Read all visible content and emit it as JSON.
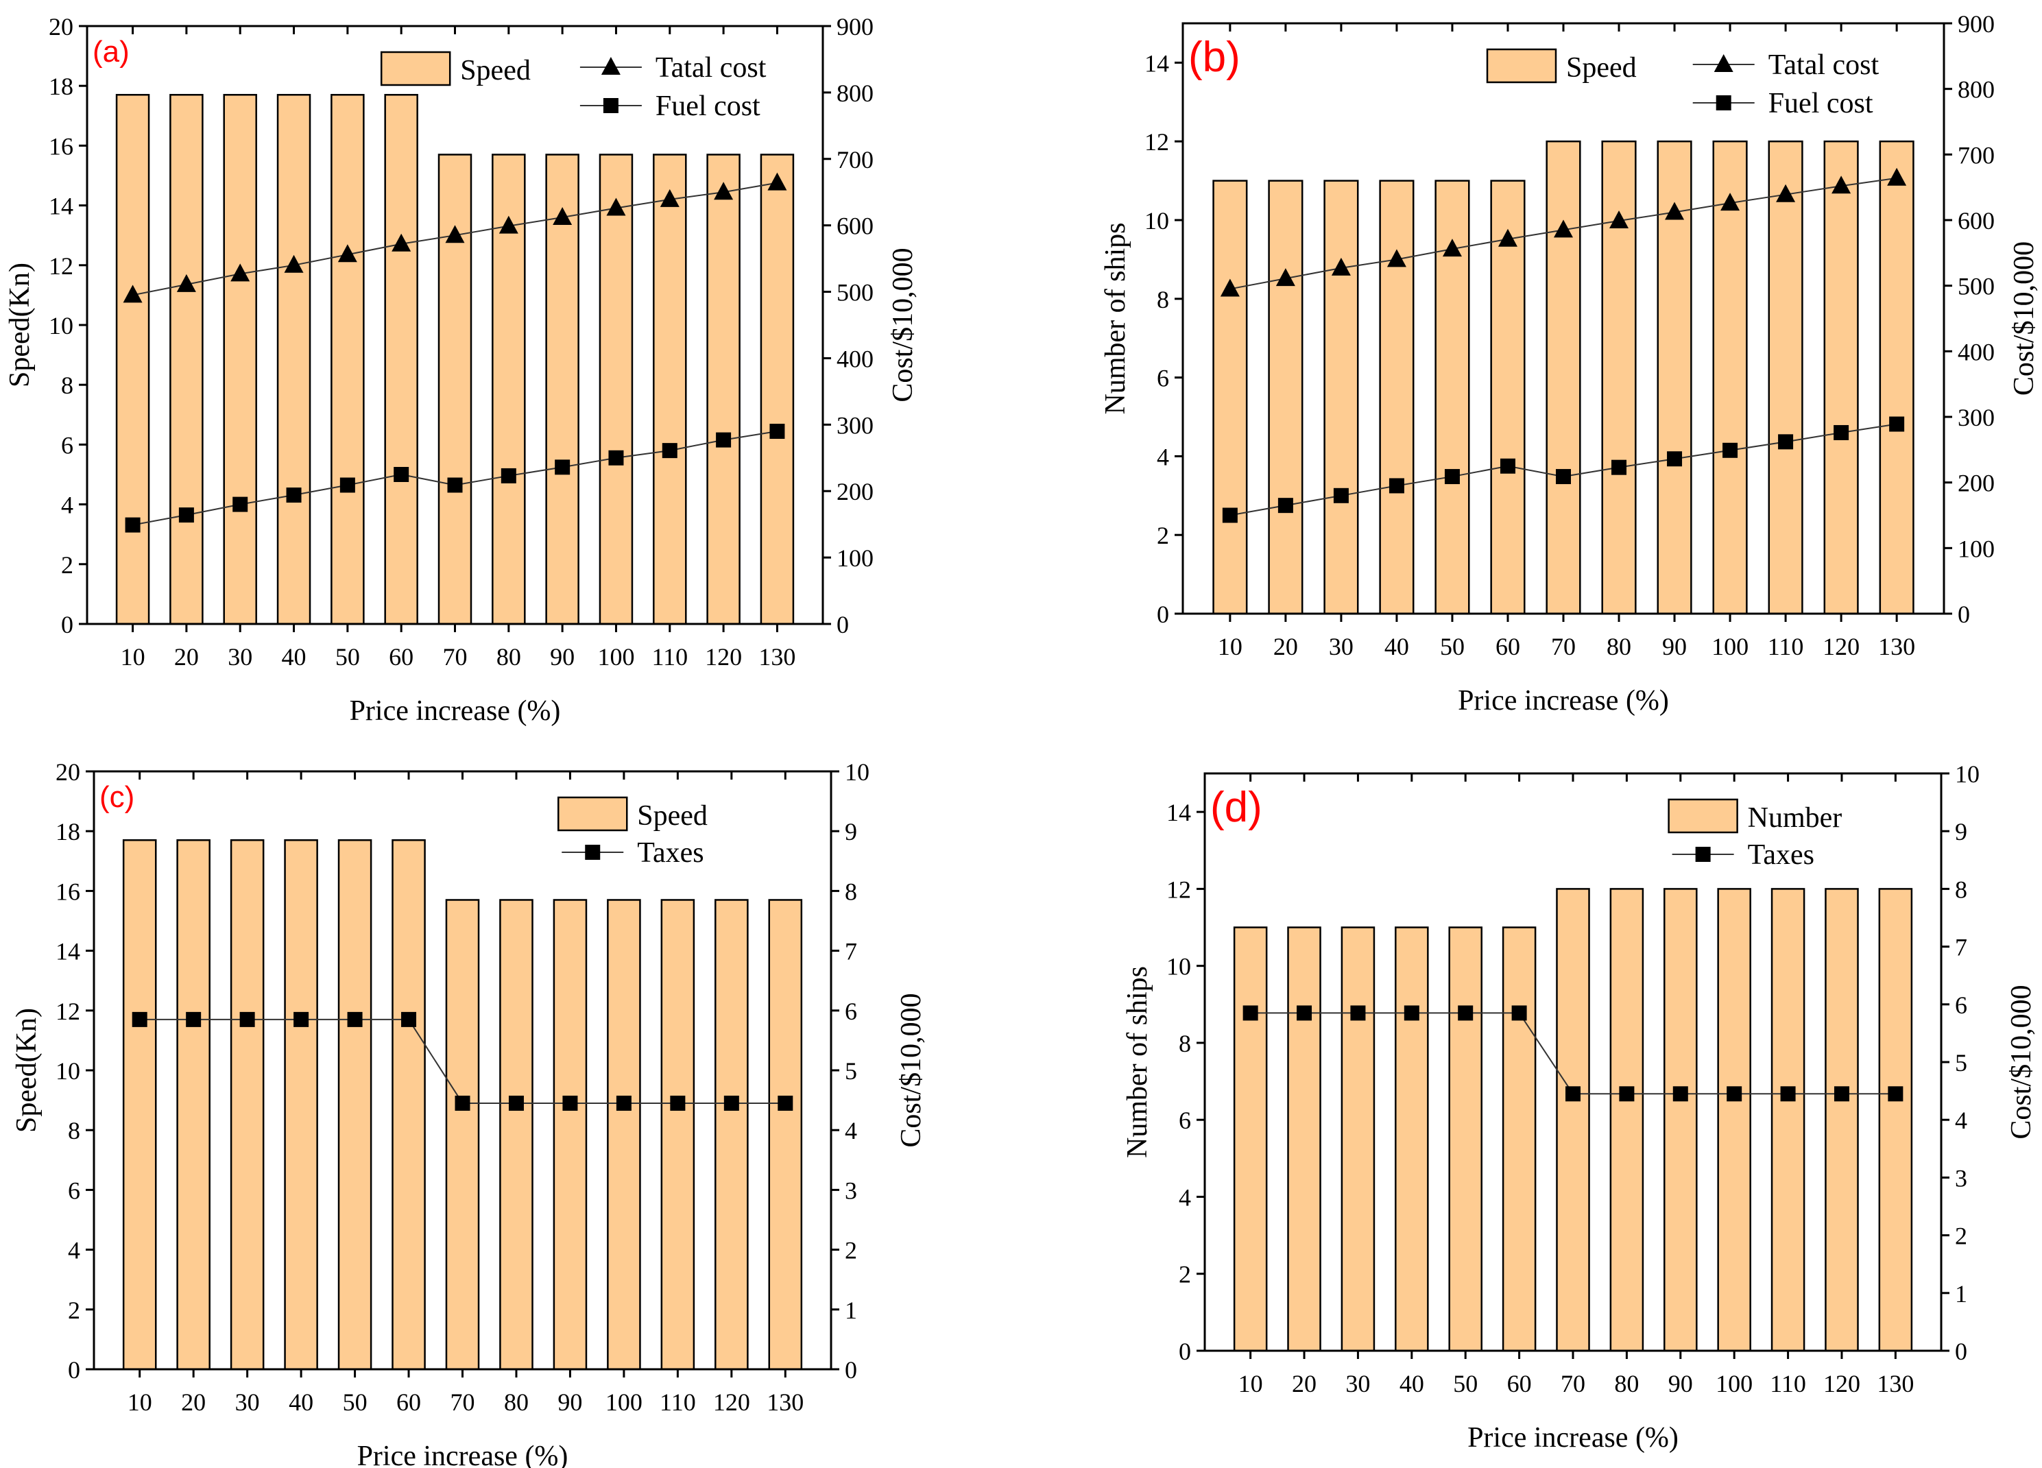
{
  "colors": {
    "bar": "#fecc92",
    "line": "#000000",
    "panel_label": "#ff0000"
  },
  "chart_data": [
    {
      "type": "bar+line",
      "panel_label": "(a)",
      "xlabel": "Price increase (%)",
      "ylabel": "Speed(Kn)",
      "y2label": "Cost/$10,000",
      "categories": [
        "10",
        "20",
        "30",
        "40",
        "50",
        "60",
        "70",
        "80",
        "90",
        "100",
        "110",
        "120",
        "130"
      ],
      "ylim": [
        0,
        20
      ],
      "yticks": [
        0,
        2,
        4,
        6,
        8,
        10,
        12,
        14,
        16,
        18,
        20
      ],
      "y2lim": [
        0,
        900
      ],
      "y2ticks": [
        0,
        100,
        200,
        300,
        400,
        500,
        600,
        700,
        800,
        900
      ],
      "legend_placement": "top-right",
      "bars": {
        "name": "Speed",
        "values": [
          17.7,
          17.7,
          17.7,
          17.7,
          17.7,
          17.7,
          15.7,
          15.7,
          15.7,
          15.7,
          15.7,
          15.7,
          15.7
        ]
      },
      "series": [
        {
          "name": "Tatal cost",
          "marker": "triangle",
          "values": [
            495,
            511,
            527,
            540,
            556,
            572,
            585,
            599,
            612,
            626,
            639,
            650,
            664
          ]
        },
        {
          "name": "Fuel cost",
          "marker": "square",
          "values": [
            149,
            164,
            180,
            194,
            209,
            225,
            209,
            223,
            236,
            250,
            261,
            277,
            290
          ]
        }
      ]
    },
    {
      "type": "bar+line",
      "panel_label": "(b)",
      "xlabel": "Price increase (%)",
      "ylabel": "Number of ships",
      "y2label": "Cost/$10,000",
      "categories": [
        "10",
        "20",
        "30",
        "40",
        "50",
        "60",
        "70",
        "80",
        "90",
        "100",
        "110",
        "120",
        "130"
      ],
      "ylim": [
        0,
        15
      ],
      "yticks": [
        0,
        2,
        4,
        6,
        8,
        10,
        12,
        14
      ],
      "y2lim": [
        0,
        900
      ],
      "y2ticks": [
        0,
        100,
        200,
        300,
        400,
        500,
        600,
        700,
        800,
        900
      ],
      "legend_placement": "top-right",
      "bars": {
        "name": "Speed",
        "values": [
          11,
          11,
          11,
          11,
          11,
          11,
          12,
          12,
          12,
          12,
          12,
          12,
          12
        ]
      },
      "series": [
        {
          "name": "Tatal cost",
          "marker": "triangle",
          "values": [
            495,
            511,
            527,
            540,
            556,
            571,
            585,
            599,
            612,
            626,
            639,
            652,
            664
          ]
        },
        {
          "name": "Fuel cost",
          "marker": "square",
          "values": [
            150,
            165,
            180,
            195,
            209,
            225,
            209,
            223,
            236,
            249,
            262,
            276,
            289
          ]
        }
      ]
    },
    {
      "type": "bar+line",
      "panel_label": "(c)",
      "xlabel": "Price increase (%)",
      "ylabel": "Speed(Kn)",
      "y2label": "Cost/$10,000",
      "categories": [
        "10",
        "20",
        "30",
        "40",
        "50",
        "60",
        "70",
        "80",
        "90",
        "100",
        "110",
        "120",
        "130"
      ],
      "ylim": [
        0,
        20
      ],
      "yticks": [
        0,
        2,
        4,
        6,
        8,
        10,
        12,
        14,
        16,
        18,
        20
      ],
      "y2lim": [
        0,
        10
      ],
      "y2ticks": [
        0,
        1,
        2,
        3,
        4,
        5,
        6,
        7,
        8,
        9,
        10
      ],
      "legend_placement": "top-right",
      "bars": {
        "name": "Speed",
        "values": [
          17.7,
          17.7,
          17.7,
          17.7,
          17.7,
          17.7,
          15.7,
          15.7,
          15.7,
          15.7,
          15.7,
          15.7,
          15.7
        ]
      },
      "series": [
        {
          "name": "Taxes",
          "marker": "square",
          "values": [
            5.85,
            5.85,
            5.85,
            5.85,
            5.85,
            5.85,
            4.45,
            4.45,
            4.45,
            4.45,
            4.45,
            4.45,
            4.45
          ]
        }
      ]
    },
    {
      "type": "bar+line",
      "panel_label": "(d)",
      "xlabel": "Price increase (%)",
      "ylabel": "Number of ships",
      "y2label": "Cost/$10,000",
      "categories": [
        "10",
        "20",
        "30",
        "40",
        "50",
        "60",
        "70",
        "80",
        "90",
        "100",
        "110",
        "120",
        "130"
      ],
      "ylim": [
        0,
        15
      ],
      "yticks": [
        0,
        2,
        4,
        6,
        8,
        10,
        12,
        14
      ],
      "y2lim": [
        0,
        10
      ],
      "y2ticks": [
        0,
        1,
        2,
        3,
        4,
        5,
        6,
        7,
        8,
        9,
        10
      ],
      "legend_placement": "top-right",
      "bars": {
        "name": "Number",
        "values": [
          11,
          11,
          11,
          11,
          11,
          11,
          12,
          12,
          12,
          12,
          12,
          12,
          12
        ]
      },
      "series": [
        {
          "name": "Taxes",
          "marker": "square",
          "values": [
            5.85,
            5.85,
            5.85,
            5.85,
            5.85,
            5.85,
            4.45,
            4.45,
            4.45,
            4.45,
            4.45,
            4.45,
            4.45
          ]
        }
      ]
    }
  ]
}
